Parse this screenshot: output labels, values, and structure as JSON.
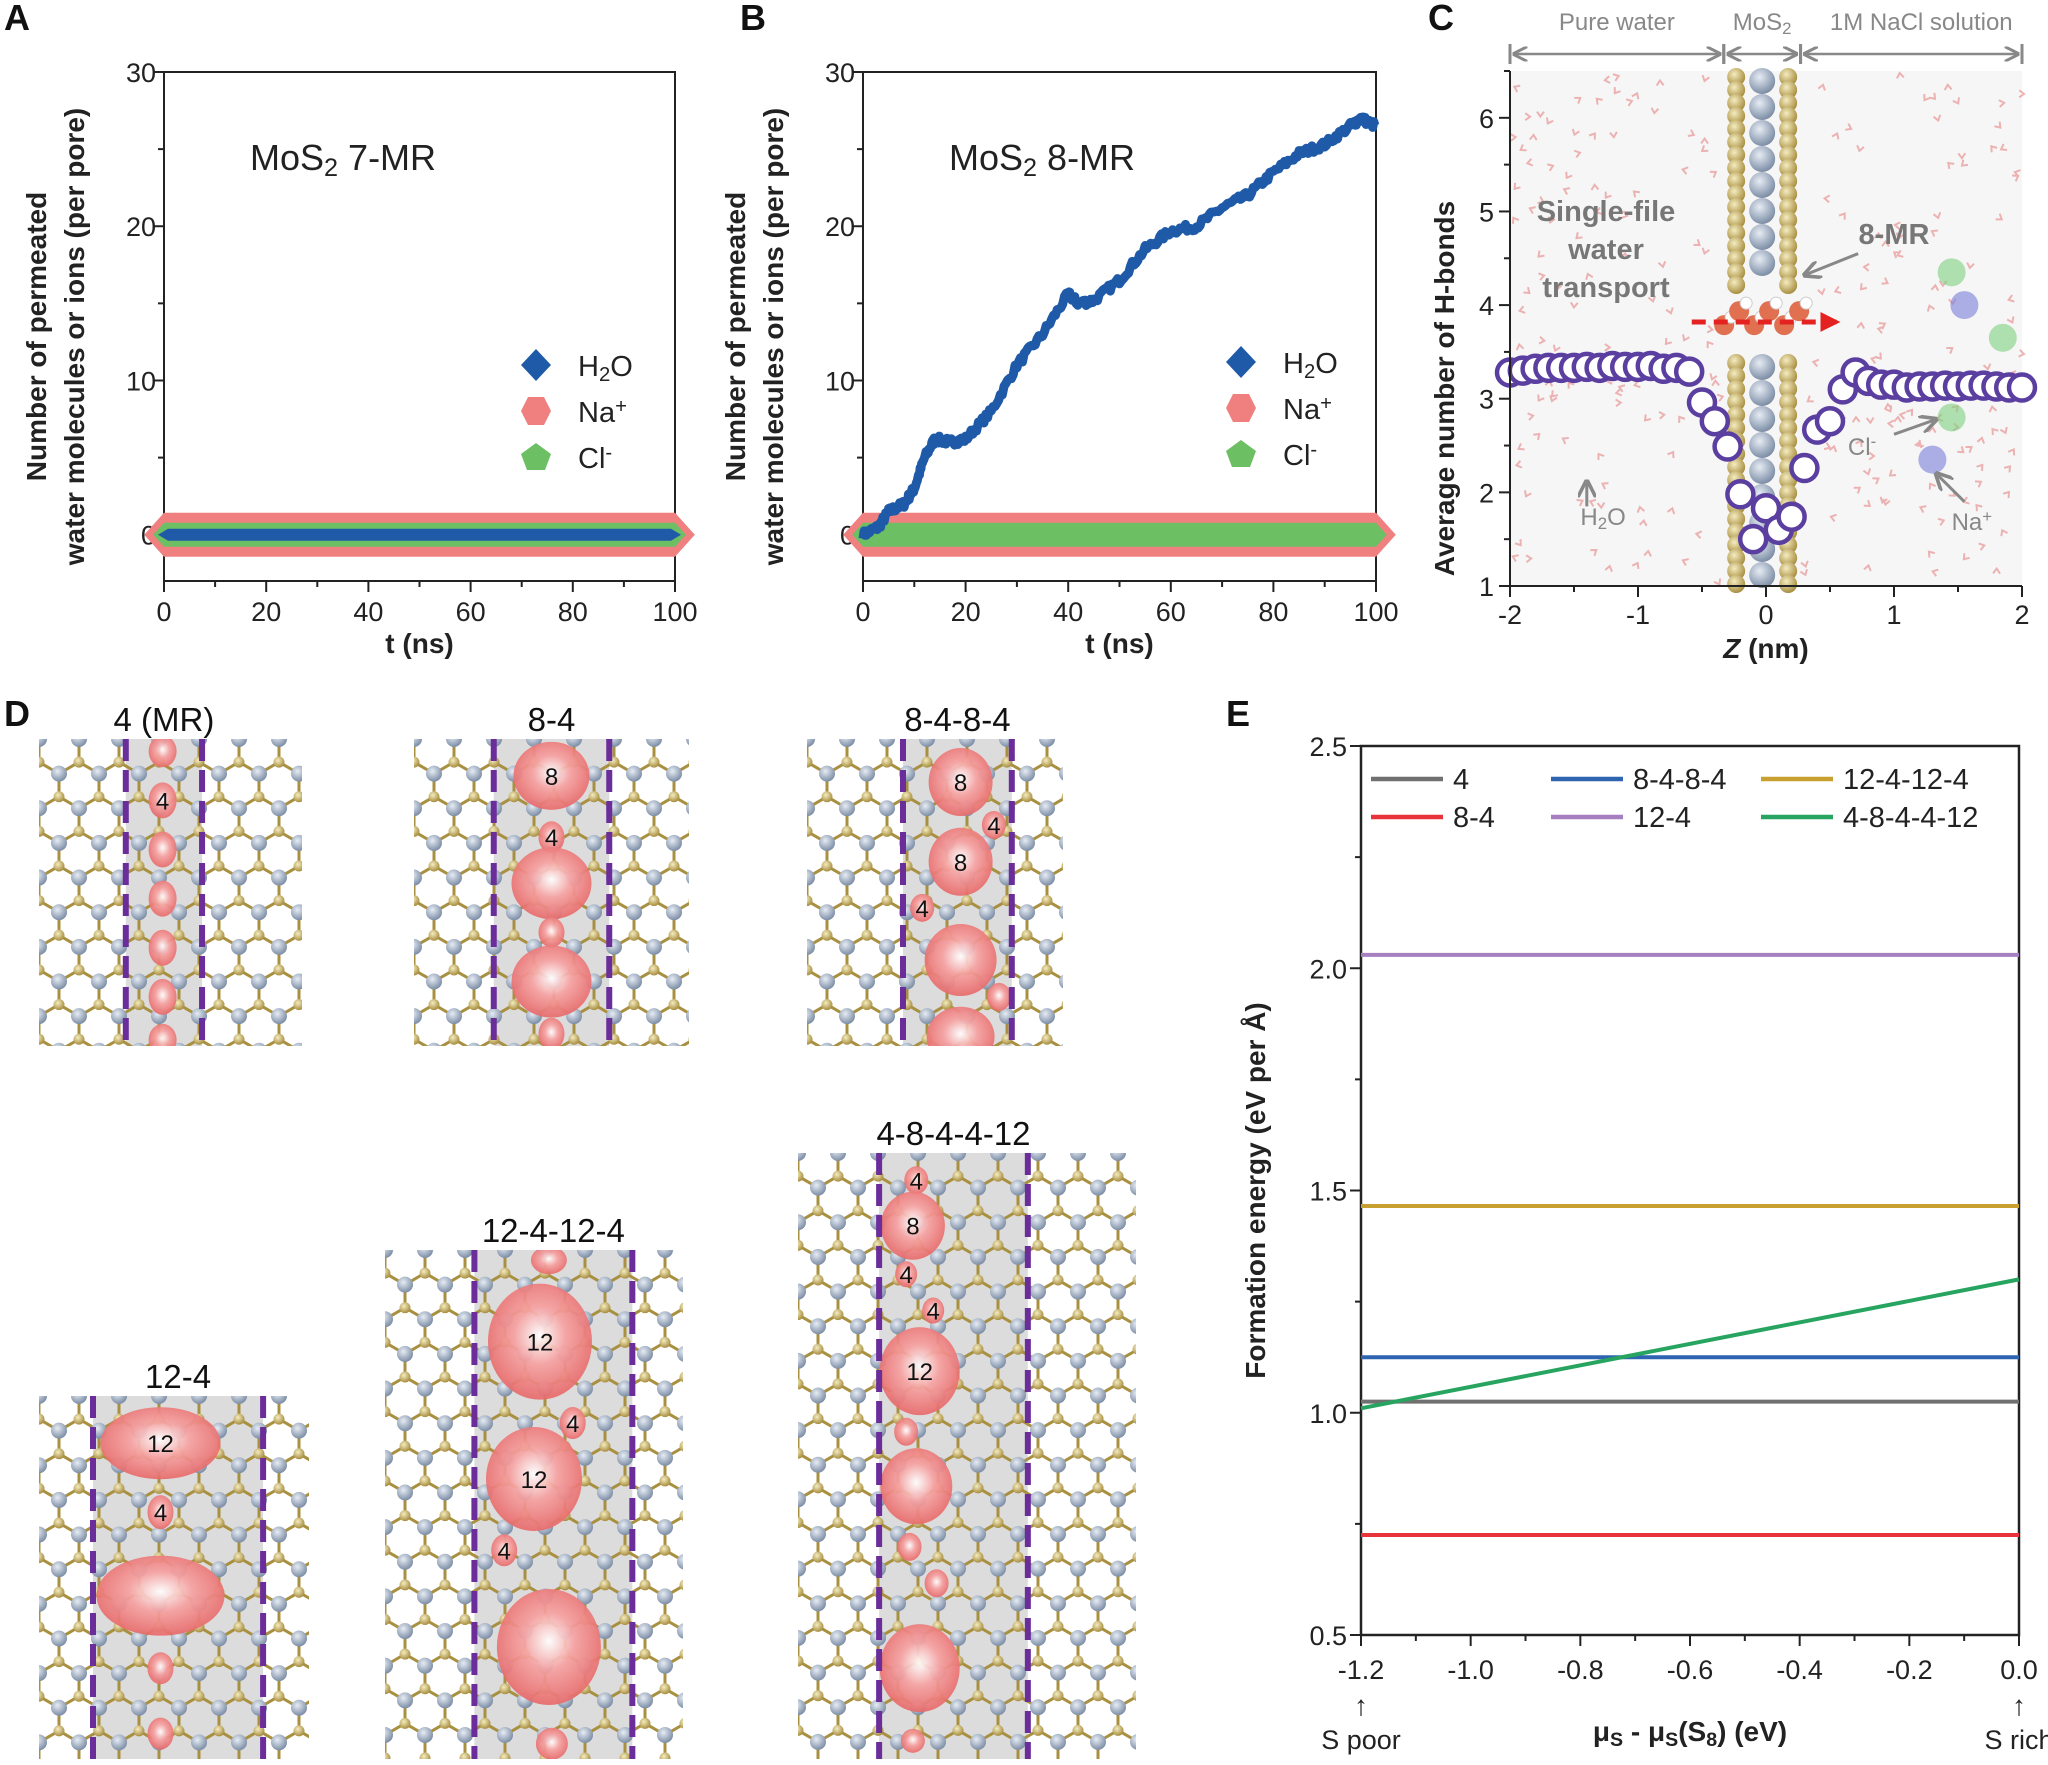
{
  "panel_letters": {
    "A": "A",
    "B": "B",
    "C": "C",
    "D": "D",
    "E": "E"
  },
  "chart_data": [
    {
      "panel": "A",
      "type": "line",
      "title_parts": [
        "MoS",
        "2",
        " 7-MR"
      ],
      "xlabel": "t (ns)",
      "ylabel_lines": [
        "Number of permeated",
        "water molecules or ions (per pore)"
      ],
      "xlim": [
        0,
        100
      ],
      "ylim": [
        -3,
        30
      ],
      "xticks": [
        "0",
        "20",
        "40",
        "60",
        "80",
        "100"
      ],
      "yticks": [
        "0",
        "10",
        "20",
        "30"
      ],
      "legend_position": "center-right",
      "series": [
        {
          "name_parts": [
            "H",
            "2",
            "O"
          ],
          "marker": "diamond",
          "color": "#1f5aa8",
          "x": [
            0,
            100
          ],
          "y": [
            0,
            0
          ]
        },
        {
          "name_parts": [
            "Na",
            "+"
          ],
          "marker": "hexagon",
          "color": "#f08080",
          "x": [
            0,
            100
          ],
          "y": [
            0,
            0
          ]
        },
        {
          "name_parts": [
            "Cl",
            "-"
          ],
          "marker": "pentagon",
          "color": "#6cc063",
          "x": [
            0,
            100
          ],
          "y": [
            0,
            0
          ]
        }
      ]
    },
    {
      "panel": "B",
      "type": "line",
      "title_parts": [
        "MoS",
        "2",
        " 8-MR"
      ],
      "xlabel": "t (ns)",
      "ylabel_lines": [
        "Number of permeated",
        "water molecules or ions (per pore)"
      ],
      "xlim": [
        0,
        100
      ],
      "ylim": [
        -3,
        30
      ],
      "xticks": [
        "0",
        "20",
        "40",
        "60",
        "80",
        "100"
      ],
      "yticks": [
        "0",
        "10",
        "20",
        "30"
      ],
      "legend_position": "center-right",
      "series": [
        {
          "name_parts": [
            "H",
            "2",
            "O"
          ],
          "marker": "diamond",
          "color": "#1f5aa8",
          "x": [
            0,
            3,
            5,
            8,
            10,
            12,
            14,
            17,
            20,
            25,
            30,
            35,
            40,
            42,
            45,
            50,
            55,
            60,
            65,
            70,
            75,
            80,
            85,
            90,
            95,
            97,
            100
          ],
          "y": [
            0,
            0.5,
            1.5,
            2,
            3,
            5,
            6.2,
            6,
            6.2,
            8,
            11,
            13,
            15.6,
            15,
            15.2,
            16.5,
            18.5,
            19.7,
            20,
            21.2,
            22,
            23.5,
            24.7,
            25.3,
            26.5,
            27,
            26.5
          ]
        },
        {
          "name_parts": [
            "Na",
            "+"
          ],
          "marker": "hexagon",
          "color": "#f08080",
          "x": [
            0,
            100
          ],
          "y": [
            0,
            0
          ]
        },
        {
          "name_parts": [
            "Cl",
            "-"
          ],
          "marker": "pentagon",
          "color": "#6cc063",
          "x": [
            0,
            100
          ],
          "y": [
            0,
            0
          ]
        }
      ]
    },
    {
      "panel": "C",
      "type": "scatter",
      "xlabel_parts": [
        "Z",
        " (nm)"
      ],
      "ylabel": "Average number of H-bonds",
      "xlim": [
        -2,
        2
      ],
      "ylim": [
        1,
        6.5
      ],
      "xticks": [
        "-2",
        "-1",
        "0",
        "1",
        "2"
      ],
      "yticks": [
        "1",
        "2",
        "3",
        "4",
        "5",
        "6"
      ],
      "marker_color": "#5b3fa0",
      "regions": [
        {
          "label_parts": [
            "Pure water"
          ],
          "from": -2,
          "to": -0.33
        },
        {
          "label_parts": [
            "MoS",
            "2"
          ],
          "from": -0.33,
          "to": 0.27
        },
        {
          "label_parts": [
            "1M NaCl solution"
          ],
          "from": 0.27,
          "to": 2
        }
      ],
      "annotations": {
        "transport_lines": [
          "Single-file",
          "water",
          "transport"
        ],
        "pore": "8-MR",
        "water_parts": [
          "H",
          "2",
          "O"
        ],
        "chloride_parts": [
          "Cl",
          "-"
        ],
        "sodium_parts": [
          "Na",
          "+"
        ]
      },
      "x": [
        -2,
        -1.9,
        -1.8,
        -1.7,
        -1.6,
        -1.5,
        -1.4,
        -1.3,
        -1.2,
        -1.1,
        -1.0,
        -0.9,
        -0.8,
        -0.7,
        -0.6,
        -0.5,
        -0.4,
        -0.3,
        -0.2,
        -0.1,
        0,
        0.1,
        0.2,
        0.3,
        0.4,
        0.5,
        0.6,
        0.7,
        0.8,
        0.9,
        1.0,
        1.1,
        1.2,
        1.3,
        1.4,
        1.5,
        1.6,
        1.7,
        1.8,
        1.9,
        2.0
      ],
      "y": [
        3.28,
        3.3,
        3.32,
        3.33,
        3.33,
        3.33,
        3.34,
        3.33,
        3.35,
        3.34,
        3.34,
        3.35,
        3.32,
        3.33,
        3.29,
        2.96,
        2.76,
        2.49,
        1.98,
        1.5,
        1.83,
        1.6,
        1.74,
        2.26,
        2.67,
        2.76,
        3.1,
        3.28,
        3.19,
        3.15,
        3.15,
        3.12,
        3.13,
        3.13,
        3.14,
        3.13,
        3.14,
        3.14,
        3.13,
        3.12,
        3.12
      ]
    },
    {
      "panel": "E",
      "type": "line",
      "xlabel": "μS - μS(S8) (eV)",
      "xlabel_parts": [
        "μ",
        "S",
        " - μ",
        "S",
        "(S",
        "8",
        ") (eV)"
      ],
      "ylabel": "Formation energy (eV per Å)",
      "xlim": [
        -1.2,
        0
      ],
      "ylim": [
        0.5,
        2.5
      ],
      "xticks": [
        "-1.2",
        "-1.0",
        "-0.8",
        "-0.6",
        "-0.4",
        "-0.2",
        "0.0"
      ],
      "yticks": [
        "0.5",
        "1.0",
        "1.5",
        "2.0",
        "2.5"
      ],
      "x_end_labels": [
        "S poor",
        "S rich"
      ],
      "legend_position": "top",
      "series": [
        {
          "name": "4",
          "color": "#707070",
          "x": [
            -1.2,
            0
          ],
          "y": [
            1.025,
            1.025
          ]
        },
        {
          "name": "8-4",
          "color": "#e8333a",
          "x": [
            -1.2,
            0
          ],
          "y": [
            0.725,
            0.725
          ]
        },
        {
          "name": "8-4-8-4",
          "color": "#2e64b0",
          "x": [
            -1.2,
            0
          ],
          "y": [
            1.125,
            1.125
          ]
        },
        {
          "name": "12-4",
          "color": "#a57fc0",
          "x": [
            -1.2,
            0
          ],
          "y": [
            2.03,
            2.03
          ]
        },
        {
          "name": "12-4-12-4",
          "color": "#c8a030",
          "x": [
            -1.2,
            0
          ],
          "y": [
            1.465,
            1.465
          ]
        },
        {
          "name": "4-8-4-4-12",
          "color": "#27a560",
          "x": [
            -1.2,
            0
          ],
          "y": [
            1.01,
            1.3
          ]
        }
      ]
    }
  ],
  "panel_D": {
    "structures": [
      {
        "title": "4 (MR)",
        "ring_labels": [
          "4"
        ]
      },
      {
        "title": "8-4",
        "ring_labels": [
          "8",
          "4"
        ]
      },
      {
        "title": "8-4-8-4",
        "ring_labels": [
          "8",
          "4",
          "8",
          "4"
        ]
      },
      {
        "title": "12-4",
        "ring_labels": [
          "12",
          "4"
        ]
      },
      {
        "title": "12-4-12-4",
        "ring_labels": [
          "12",
          "4",
          "12",
          "4"
        ]
      },
      {
        "title": "4-8-4-4-12",
        "ring_labels": [
          "4",
          "8",
          "4",
          "4",
          "12"
        ]
      }
    ]
  }
}
